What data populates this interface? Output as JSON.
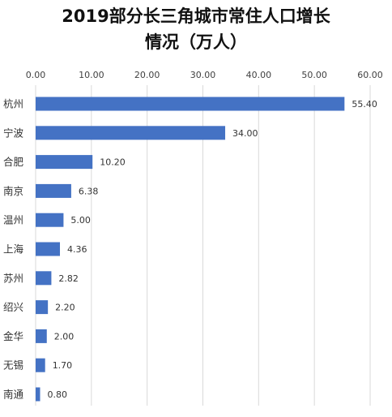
{
  "title_lines": [
    "2019部分长三角城市常住人口增长",
    "情况（万人）"
  ],
  "chart_data": {
    "type": "bar",
    "orientation": "horizontal",
    "title": "2019部分长三角城市常住人口增长情况（万人）",
    "categories": [
      "杭州",
      "宁波",
      "合肥",
      "南京",
      "温州",
      "上海",
      "苏州",
      "绍兴",
      "金华",
      "无锡",
      "南通"
    ],
    "values": [
      55.4,
      34.0,
      10.2,
      6.38,
      5.0,
      4.36,
      2.82,
      2.2,
      2.0,
      1.7,
      0.8
    ],
    "value_labels": [
      "55.40",
      "34.00",
      "10.20",
      "6.38",
      "5.00",
      "4.36",
      "2.82",
      "2.20",
      "2.00",
      "1.70",
      "0.80"
    ],
    "x_ticks": [
      "0.00",
      "10.00",
      "20.00",
      "30.00",
      "40.00",
      "50.00",
      "60.00"
    ],
    "xlim": [
      0,
      60
    ],
    "xlabel": "",
    "ylabel": "",
    "x_axis_position": "top",
    "grid": true,
    "legend": "none",
    "bar_color": "#4472C4",
    "grid_color": "#D9D9D9"
  }
}
